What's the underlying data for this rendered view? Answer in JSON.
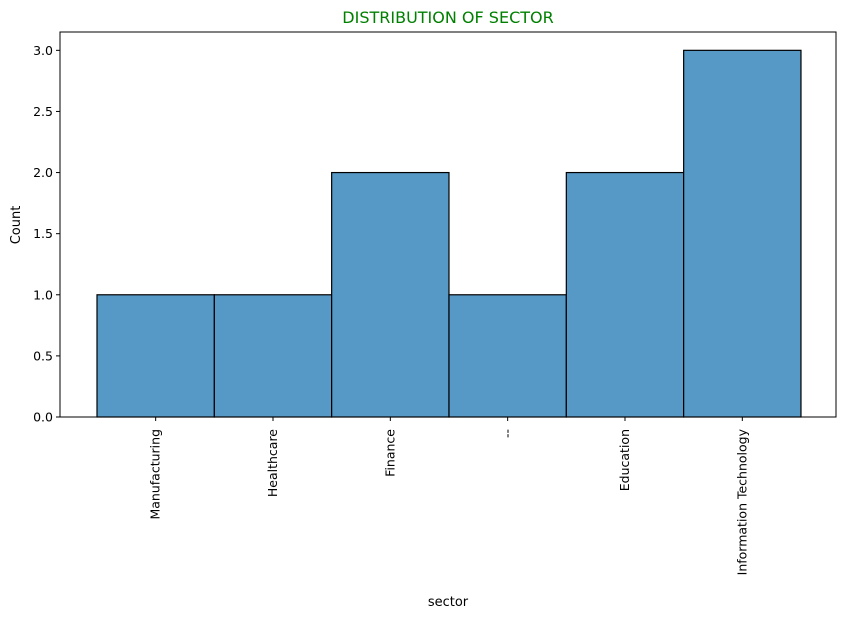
{
  "chart_data": {
    "type": "bar",
    "title": "DISTRIBUTION OF SECTOR",
    "xlabel": "sector",
    "ylabel": "Count",
    "categories": [
      "Manufacturing",
      "Healthcare",
      "Finance",
      "--",
      "Education",
      "Information Technology"
    ],
    "values": [
      1,
      1,
      2,
      1,
      2,
      3
    ],
    "ylim": [
      0,
      3.15
    ],
    "yticks": [
      "0.0",
      "0.5",
      "1.0",
      "1.5",
      "2.0",
      "2.5",
      "3.0"
    ],
    "grid": false,
    "colors": {
      "bar_fill": "#5799c6",
      "bar_edge": "#000000",
      "title": "#008000"
    }
  }
}
